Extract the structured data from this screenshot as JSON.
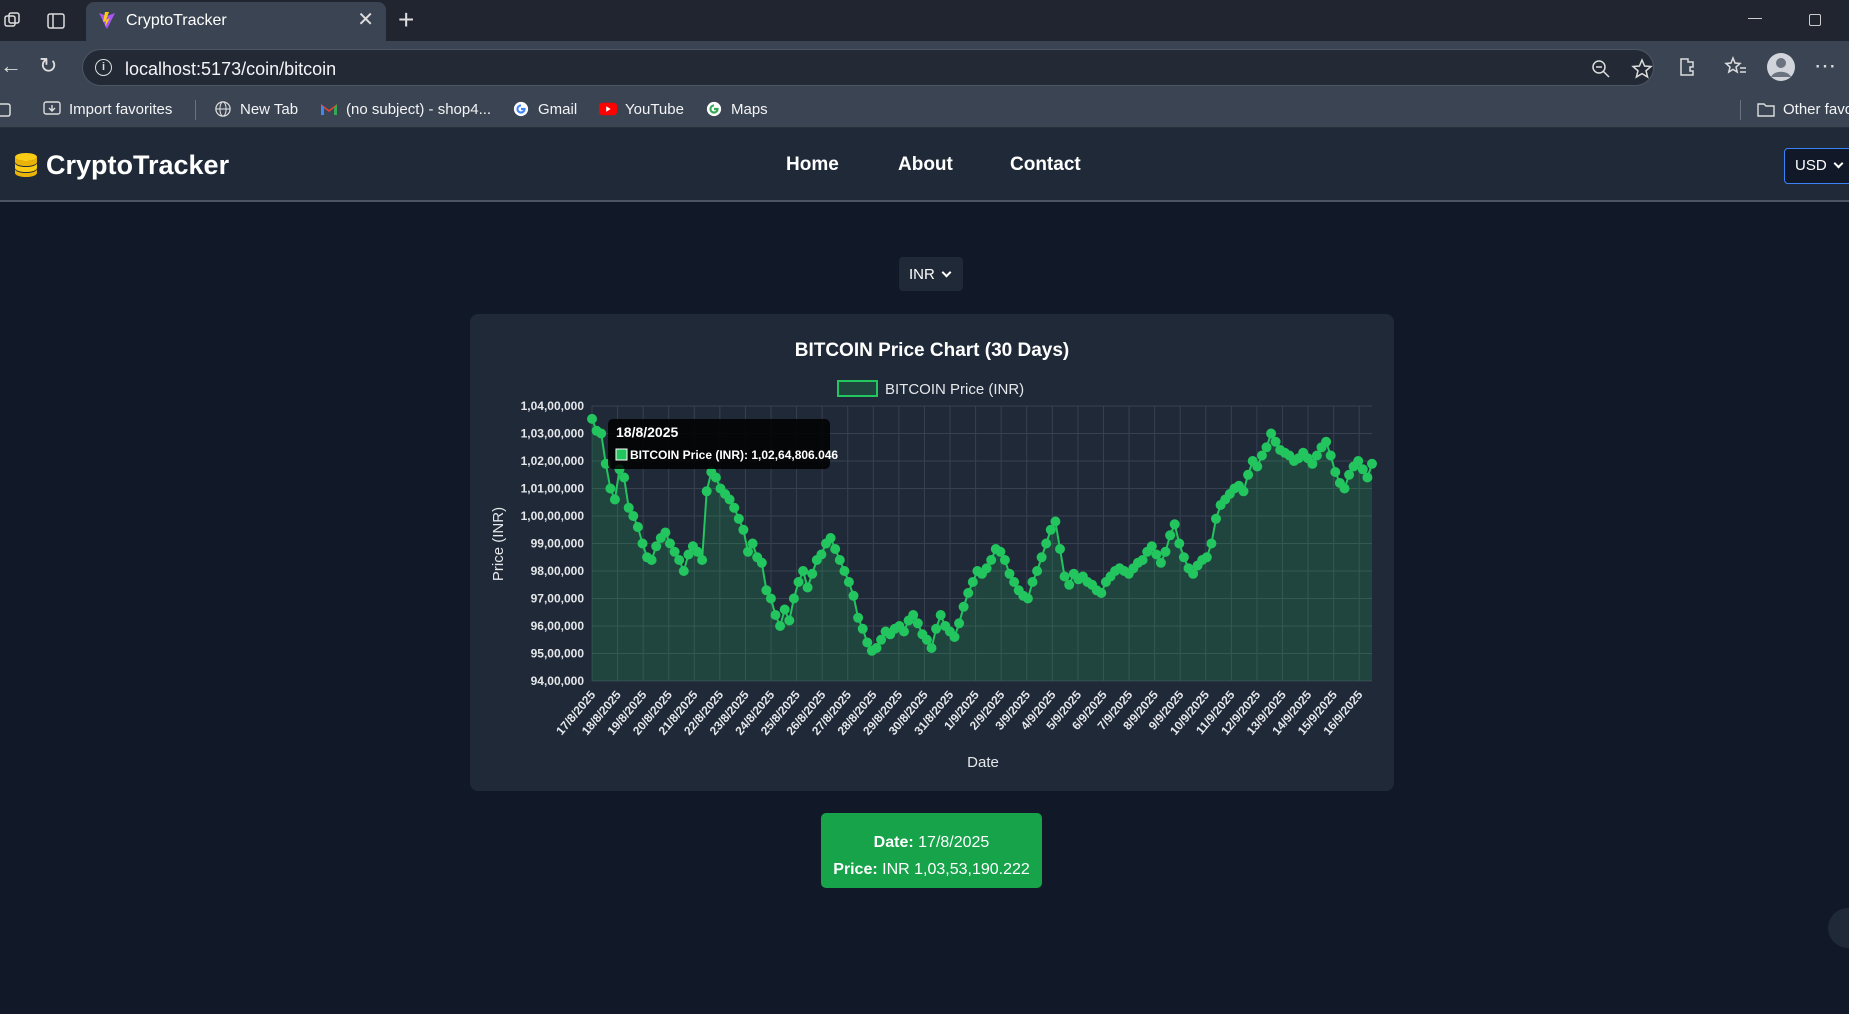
{
  "browser": {
    "tab_title": "CryptoTracker",
    "url": "localhost:5173/coin/bitcoin",
    "bookmarks": [
      {
        "label": "Import favorites",
        "icon": "import-icon"
      },
      {
        "label": "New Tab",
        "icon": "globe-icon"
      },
      {
        "label": "(no subject) - shop4...",
        "icon": "gmail-icon"
      },
      {
        "label": "Gmail",
        "icon": "google-icon"
      },
      {
        "label": "YouTube",
        "icon": "youtube-icon"
      },
      {
        "label": "Maps",
        "icon": "google-icon"
      }
    ],
    "other_favorites": "Other favo"
  },
  "navbar": {
    "brand": "CryptoTracker",
    "links": [
      "Home",
      "About",
      "Contact"
    ],
    "currency": "USD"
  },
  "main": {
    "currency": "INR"
  },
  "chart_data": {
    "type": "line",
    "title": "BITCOIN Price Chart (30 Days)",
    "legend": "BITCOIN Price (INR)",
    "legend_position": "top",
    "xlabel": "Date",
    "ylabel": "Price (INR)",
    "ylim": [
      9400000,
      10400000
    ],
    "yticks": [
      "1,04,00,000",
      "1,03,00,000",
      "1,02,00,000",
      "1,01,00,000",
      "1,00,00,000",
      "99,00,000",
      "98,00,000",
      "97,00,000",
      "96,00,000",
      "95,00,000",
      "94,00,000"
    ],
    "xticks": [
      "17/8/2025",
      "18/8/2025",
      "19/8/2025",
      "20/8/2025",
      "21/8/2025",
      "22/8/2025",
      "23/8/2025",
      "24/8/2025",
      "25/8/2025",
      "26/8/2025",
      "27/8/2025",
      "28/8/2025",
      "29/8/2025",
      "30/8/2025",
      "31/8/2025",
      "1/9/2025",
      "2/9/2025",
      "3/9/2025",
      "4/9/2025",
      "5/9/2025",
      "6/9/2025",
      "7/9/2025",
      "8/9/2025",
      "9/9/2025",
      "10/9/2025",
      "11/9/2025",
      "12/9/2025",
      "13/9/2025",
      "14/9/2025",
      "15/9/2025",
      "16/9/2025"
    ],
    "colors": {
      "line": "#22c55e",
      "fill": "rgba(34,197,94,0.18)",
      "grid": "#374151"
    },
    "grid": true,
    "series": [
      {
        "name": "BITCOIN Price (INR)",
        "daily_values": [
          10353190,
          10264806,
          10090000,
          9880000,
          9930000,
          9820000,
          10130000,
          10030000,
          9870000,
          9630000,
          9760000,
          9880000,
          9760000,
          9520000,
          9590000,
          9560000,
          9610000,
          9800000,
          9860000,
          9780000,
          9760000,
          9780000,
          9850000,
          9840000,
          10080000,
          10130000,
          10280000,
          10230000,
          10220000,
          10140000,
          10190000
        ],
        "values": [
          10353190,
          10310000,
          10300000,
          10190000,
          10100000,
          10060000,
          10170000,
          10140000,
          10030000,
          10000000,
          9960000,
          9900000,
          9850000,
          9840000,
          9890000,
          9920000,
          9940000,
          9900000,
          9870000,
          9840000,
          9800000,
          9860000,
          9890000,
          9870000,
          9840000,
          10090000,
          10160000,
          10140000,
          10100000,
          10080000,
          10060000,
          10030000,
          9990000,
          9950000,
          9870000,
          9900000,
          9850000,
          9830000,
          9730000,
          9700000,
          9640000,
          9600000,
          9660000,
          9620000,
          9700000,
          9760000,
          9800000,
          9740000,
          9790000,
          9840000,
          9860000,
          9900000,
          9920000,
          9880000,
          9840000,
          9800000,
          9760000,
          9710000,
          9630000,
          9590000,
          9540000,
          9510000,
          9520000,
          9550000,
          9580000,
          9570000,
          9590000,
          9600000,
          9580000,
          9620000,
          9640000,
          9610000,
          9570000,
          9550000,
          9520000,
          9590000,
          9640000,
          9600000,
          9580000,
          9560000,
          9610000,
          9670000,
          9720000,
          9760000,
          9800000,
          9790000,
          9810000,
          9840000,
          9880000,
          9870000,
          9840000,
          9790000,
          9760000,
          9730000,
          9710000,
          9700000,
          9760000,
          9800000,
          9850000,
          9900000,
          9950000,
          9980000,
          9880000,
          9780000,
          9750000,
          9790000,
          9770000,
          9780000,
          9760000,
          9750000,
          9730000,
          9720000,
          9760000,
          9780000,
          9800000,
          9810000,
          9800000,
          9790000,
          9810000,
          9830000,
          9840000,
          9870000,
          9890000,
          9860000,
          9830000,
          9870000,
          9930000,
          9970000,
          9900000,
          9850000,
          9810000,
          9790000,
          9820000,
          9840000,
          9850000,
          9900000,
          9990000,
          10040000,
          10060000,
          10080000,
          10100000,
          10110000,
          10090000,
          10150000,
          10200000,
          10180000,
          10220000,
          10250000,
          10300000,
          10270000,
          10240000,
          10230000,
          10220000,
          10200000,
          10210000,
          10230000,
          10210000,
          10190000,
          10220000,
          10250000,
          10270000,
          10220000,
          10160000,
          10120000,
          10100000,
          10150000,
          10180000,
          10200000,
          10170000,
          10140000,
          10190000
        ]
      }
    ],
    "tooltip": {
      "date": "18/8/2025",
      "label": "BITCOIN Price (INR): 1,02,64,806.046"
    }
  },
  "selected": {
    "date_label": "Date:",
    "date_value": "17/8/2025",
    "price_label": "Price:",
    "price_value": "INR 1,03,53,190.222"
  }
}
